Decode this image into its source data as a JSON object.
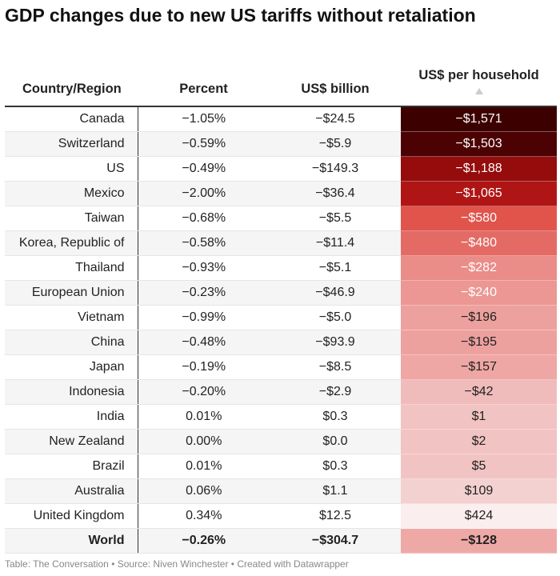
{
  "title": "GDP changes due to new US tariffs without retaliation",
  "footer": "Table: The Conversation • Source: Niven Winchester • Created with Datawrapper",
  "chart_data": {
    "type": "table",
    "columns": [
      "Country/Region",
      "Percent",
      "US$ billion",
      "US$ per household"
    ],
    "sorted_by": "US$ per household",
    "sort_direction": "ascending",
    "rows": [
      {
        "country": "Canada",
        "percent": "−1.05%",
        "billion": "−$24.5",
        "household": "−$1,571",
        "household_value": -1571,
        "color": "#3d0000"
      },
      {
        "country": "Switzerland",
        "percent": "−0.59%",
        "billion": "−$5.9",
        "household": "−$1,503",
        "household_value": -1503,
        "color": "#4c0202"
      },
      {
        "country": "US",
        "percent": "−0.49%",
        "billion": "−$149.3",
        "household": "−$1,188",
        "household_value": -1188,
        "color": "#960c0c"
      },
      {
        "country": "Mexico",
        "percent": "−2.00%",
        "billion": "−$36.4",
        "household": "−$1,065",
        "household_value": -1065,
        "color": "#b01515"
      },
      {
        "country": "Taiwan",
        "percent": "−0.68%",
        "billion": "−$5.5",
        "household": "−$580",
        "household_value": -580,
        "color": "#e0544c"
      },
      {
        "country": "Korea, Republic of",
        "percent": "−0.58%",
        "billion": "−$11.4",
        "household": "−$480",
        "household_value": -480,
        "color": "#e46b65"
      },
      {
        "country": "Thailand",
        "percent": "−0.93%",
        "billion": "−$5.1",
        "household": "−$282",
        "household_value": -282,
        "color": "#ea8d89"
      },
      {
        "country": "European Union",
        "percent": "−0.23%",
        "billion": "−$46.9",
        "household": "−$240",
        "household_value": -240,
        "color": "#ec9793"
      },
      {
        "country": "Vietnam",
        "percent": "−0.99%",
        "billion": "−$5.0",
        "household": "−$196",
        "household_value": -196,
        "color": "#eda19e"
      },
      {
        "country": "China",
        "percent": "−0.48%",
        "billion": "−$93.9",
        "household": "−$195",
        "household_value": -195,
        "color": "#eda19e"
      },
      {
        "country": "Japan",
        "percent": "−0.19%",
        "billion": "−$8.5",
        "household": "−$157",
        "household_value": -157,
        "color": "#eea7a4"
      },
      {
        "country": "Indonesia",
        "percent": "−0.20%",
        "billion": "−$2.9",
        "household": "−$42",
        "household_value": -42,
        "color": "#f0bcbb"
      },
      {
        "country": "India",
        "percent": "0.01%",
        "billion": "$0.3",
        "household": "$1",
        "household_value": 1,
        "color": "#f1c3c2"
      },
      {
        "country": "New Zealand",
        "percent": "0.00%",
        "billion": "$0.0",
        "household": "$2",
        "household_value": 2,
        "color": "#f1c3c2"
      },
      {
        "country": "Brazil",
        "percent": "0.01%",
        "billion": "$0.3",
        "household": "$5",
        "household_value": 5,
        "color": "#f1c4c3"
      },
      {
        "country": "Australia",
        "percent": "0.06%",
        "billion": "$1.1",
        "household": "$109",
        "household_value": 109,
        "color": "#f3d1d0"
      },
      {
        "country": "United Kingdom",
        "percent": "0.34%",
        "billion": "$12.5",
        "household": "$424",
        "household_value": 424,
        "color": "#fbeeee"
      },
      {
        "country": "World",
        "percent": "−0.26%",
        "billion": "−$304.7",
        "household": "−$128",
        "household_value": -128,
        "color": "#eea9a6",
        "bold": true
      }
    ]
  }
}
